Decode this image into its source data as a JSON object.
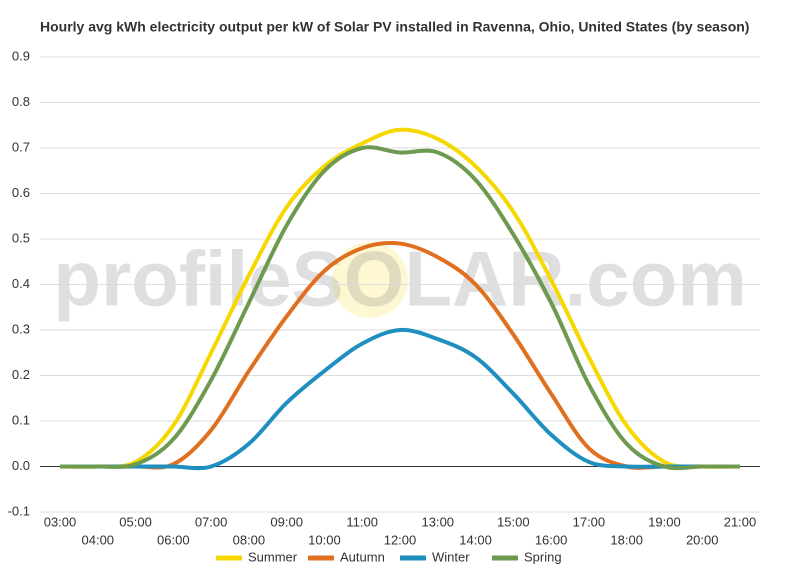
{
  "chart_data": {
    "type": "line",
    "title": "Hourly avg kWh electricity output per kW of Solar PV installed in Ravenna, Ohio, United States (by season)",
    "watermark": "profileSOLAR.com",
    "categories": [
      "03:00",
      "04:00",
      "05:00",
      "06:00",
      "07:00",
      "08:00",
      "09:00",
      "10:00",
      "11:00",
      "12:00",
      "13:00",
      "14:00",
      "15:00",
      "16:00",
      "17:00",
      "18:00",
      "19:00",
      "20:00",
      "21:00"
    ],
    "series": [
      {
        "name": "Summer",
        "color": "#f5d800",
        "values": [
          0,
          0,
          0.01,
          0.09,
          0.25,
          0.42,
          0.57,
          0.66,
          0.71,
          0.74,
          0.72,
          0.66,
          0.56,
          0.41,
          0.24,
          0.09,
          0.01,
          0,
          0
        ]
      },
      {
        "name": "Autumn",
        "color": "#e07020",
        "values": [
          0,
          0,
          0,
          0.005,
          0.08,
          0.21,
          0.33,
          0.43,
          0.48,
          0.49,
          0.46,
          0.4,
          0.29,
          0.16,
          0.04,
          0,
          0,
          0,
          0
        ]
      },
      {
        "name": "Winter",
        "color": "#1f8fc0",
        "values": [
          0,
          0,
          0,
          0,
          0,
          0.05,
          0.14,
          0.21,
          0.27,
          0.3,
          0.28,
          0.24,
          0.16,
          0.07,
          0.01,
          0,
          0,
          0,
          0
        ]
      },
      {
        "name": "Spring",
        "color": "#6e9a50",
        "values": [
          0,
          0,
          0.005,
          0.06,
          0.19,
          0.36,
          0.53,
          0.65,
          0.7,
          0.69,
          0.69,
          0.63,
          0.51,
          0.36,
          0.18,
          0.05,
          0,
          0,
          0
        ]
      }
    ],
    "ylim": [
      -0.1,
      0.9
    ],
    "yticks": [
      -0.1,
      {
        "value": 0,
        "label": "0.0"
      },
      0.1,
      0.2,
      0.3,
      0.4,
      0.5,
      0.6,
      0.7,
      0.8,
      0.9
    ],
    "grid": true,
    "legend": "bottom"
  }
}
